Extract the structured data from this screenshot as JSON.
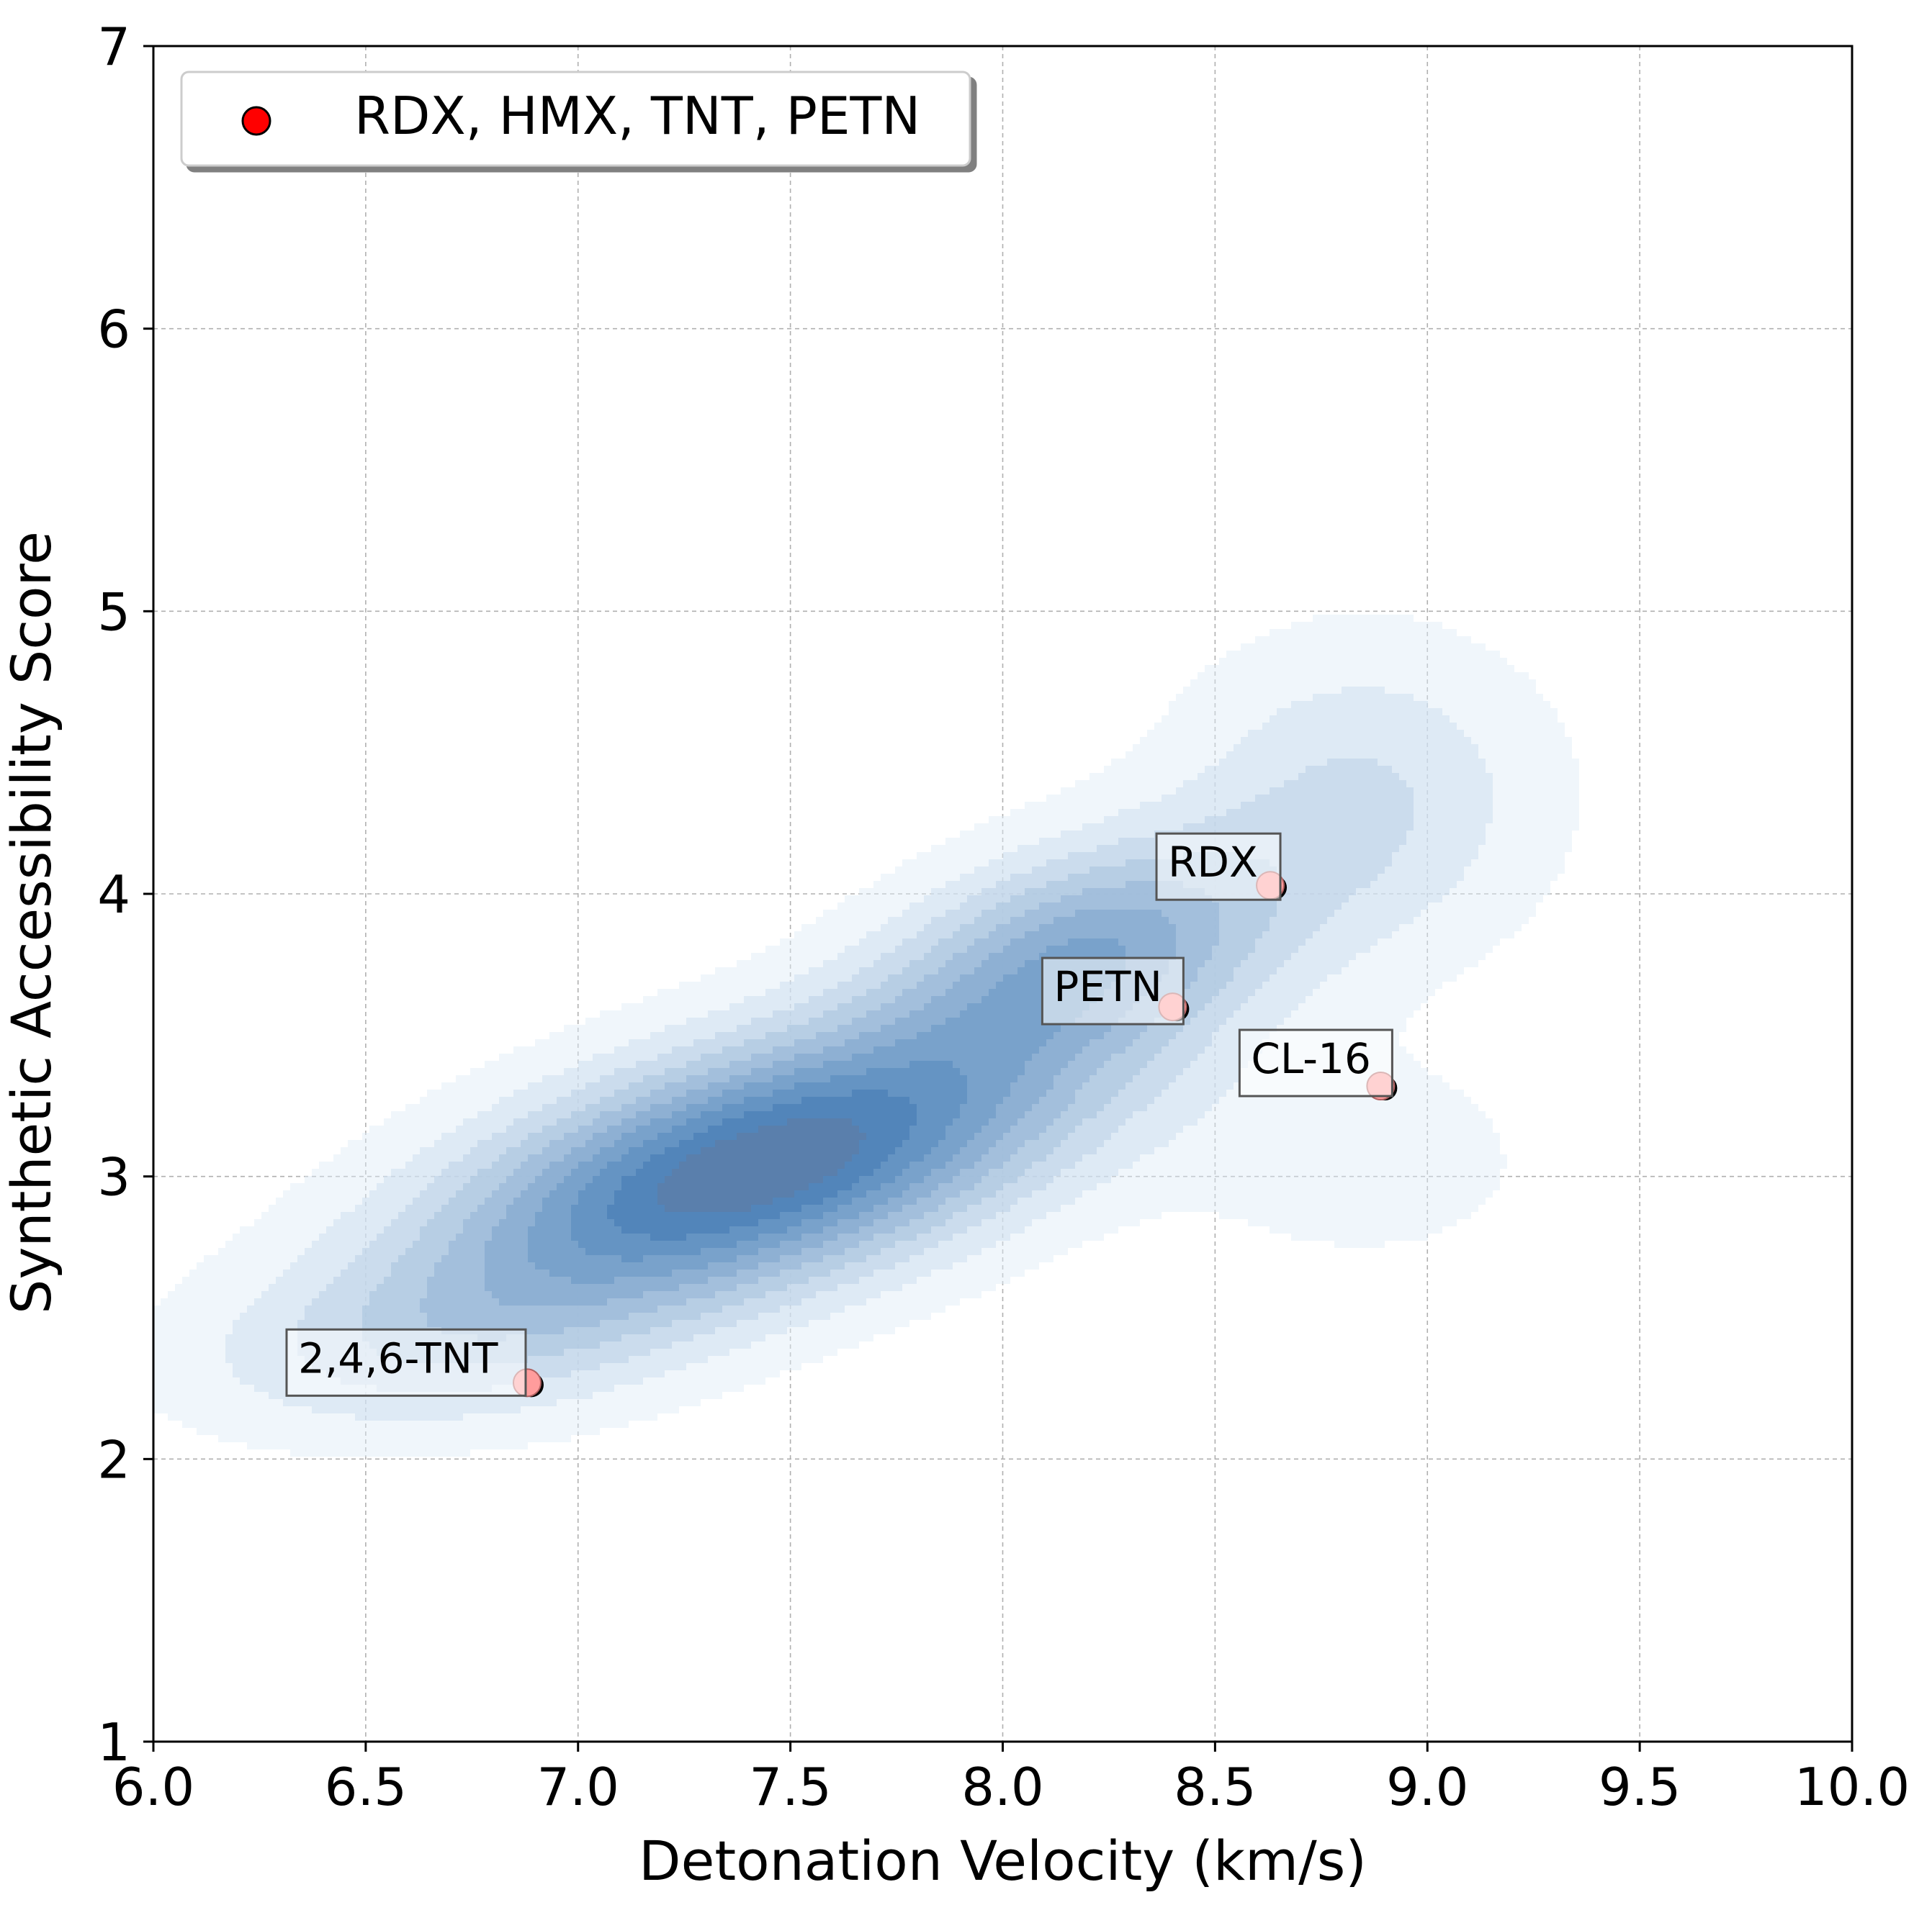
{
  "colors": {
    "kde_light": "#deebf7",
    "kde_dark": "#3b75af",
    "kde_core": "#5b7ea8",
    "point_fill": "#ff9c9c",
    "point_edge": "#000000",
    "legend_marker": "#ff0000",
    "grid": "#b0b0b0"
  },
  "chart_data": {
    "type": "scatter",
    "xlabel": "Detonation Velocity (km/s)",
    "ylabel": "Synthetic Accessibility Score",
    "xlim": [
      6.0,
      10.0
    ],
    "ylim": [
      1,
      7
    ],
    "xticks": [
      "6.0",
      "6.5",
      "7.0",
      "7.5",
      "8.0",
      "8.5",
      "9.0",
      "9.5",
      "10.0"
    ],
    "yticks": [
      "1",
      "2",
      "3",
      "4",
      "5",
      "6",
      "7"
    ],
    "grid": true,
    "legend": {
      "position": "top-left",
      "entries": [
        "RDX, HMX, TNT, PETN"
      ]
    },
    "series": [
      {
        "name": "RDX, HMX, TNT, PETN",
        "points": [
          {
            "label": "RDX",
            "x": 8.63,
            "y": 4.03
          },
          {
            "label": "PETN",
            "x": 8.4,
            "y": 3.6
          },
          {
            "label": "CL-16",
            "x": 8.89,
            "y": 3.32
          },
          {
            "label": "2,4,6-TNT",
            "x": 6.88,
            "y": 2.27
          }
        ]
      }
    ],
    "density": {
      "type": "kde",
      "levels": 10,
      "components": [
        {
          "cx": 7.42,
          "cy": 3.03,
          "sx": 0.52,
          "sy": 0.36,
          "rho": 0.55,
          "w": 1.0
        },
        {
          "cx": 8.2,
          "cy": 3.8,
          "sx": 0.32,
          "sy": 0.28,
          "rho": 0.35,
          "w": 0.55
        },
        {
          "cx": 6.65,
          "cy": 2.4,
          "sx": 0.4,
          "sy": 0.22,
          "rho": 0.2,
          "w": 0.22
        },
        {
          "cx": 8.85,
          "cy": 4.35,
          "sx": 0.3,
          "sy": 0.38,
          "rho": 0.0,
          "w": 0.25
        },
        {
          "cx": 8.85,
          "cy": 3.05,
          "sx": 0.28,
          "sy": 0.25,
          "rho": 0.0,
          "w": 0.12
        }
      ]
    }
  }
}
